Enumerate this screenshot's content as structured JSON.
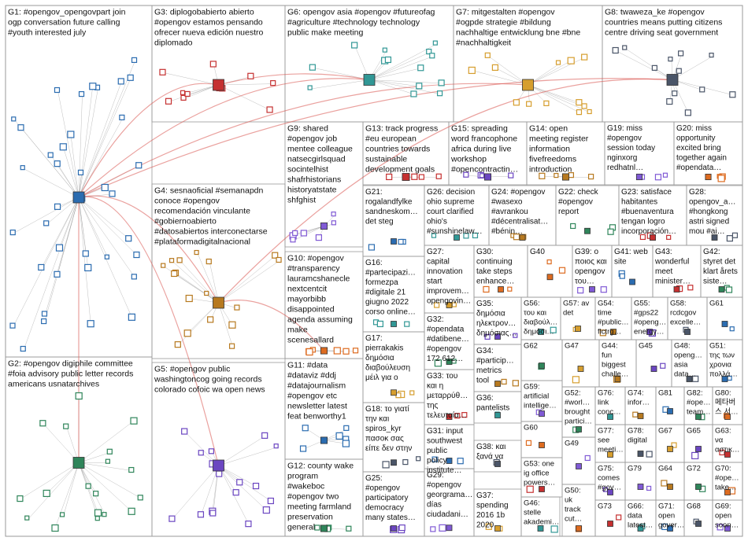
{
  "groups": [
    {
      "id": "G1",
      "lines": [
        "G1: #opengov_opengovpart join",
        "ogp conversation future calling",
        "#youth interested july"
      ]
    },
    {
      "id": "G2",
      "lines": [
        "G2: #opengov digiphile committee",
        "#foia advisory public letter records",
        "americans usnatarchives"
      ]
    },
    {
      "id": "G3",
      "lines": [
        "G3: diplogobabierto abierto",
        "#opengov estamos pensando",
        "ofrecer nueva edición nuestro",
        "diplomado"
      ]
    },
    {
      "id": "G4",
      "lines": [
        "G4: sesnaoficial #semanapdn",
        "conoce #opengov",
        "recomendación vinculante",
        "#gobiernoabierto",
        "#datosabiertos interconectarse",
        "#plataformadigitalnacional"
      ]
    },
    {
      "id": "G5",
      "lines": [
        "G5: #opengov public",
        "washingtoncog going records",
        "colorado cofoic wa open news"
      ]
    },
    {
      "id": "G6",
      "lines": [
        "G6: opengov asia #opengov #futureofag",
        "#agriculture #technology technology",
        "public make meeting"
      ]
    },
    {
      "id": "G7",
      "lines": [
        "G7: mitgestalten #opengov",
        "#ogpde strategie #bildung",
        "nachhaltige entwicklung bne #bne",
        "#nachhaltigkeit"
      ]
    },
    {
      "id": "G8",
      "lines": [
        "G8: twaweza_ke #opengov",
        "countries means putting citizens",
        "centre driving seat government"
      ]
    },
    {
      "id": "G9",
      "lines": [
        "G9: shared",
        "#opengov job",
        "mentee colleague",
        "natsecgirlsquad",
        "socintelhist",
        "shafrhistorians",
        "historyatstate",
        "shfghist"
      ]
    },
    {
      "id": "G10",
      "lines": [
        "G10: #opengov",
        "#transparency",
        "lauramcshanecle",
        "nextcentcit",
        "mayorbibb",
        "disappointed",
        "agenda assuming",
        "make",
        "scenesallard"
      ]
    },
    {
      "id": "G11",
      "lines": [
        "G11: #data",
        "#dataviz #ddj",
        "#datajournalism",
        "#opengov etc",
        "newsletter latest",
        "feat benworthy1"
      ]
    },
    {
      "id": "G12",
      "lines": [
        "G12: county wake",
        "program",
        "#wakeboc",
        "#opengov two",
        "meeting farmland",
        "preservation",
        "general"
      ]
    },
    {
      "id": "G13",
      "lines": [
        "G13: track progress",
        "#eu european",
        "countries towards",
        "sustainable",
        "development goals"
      ]
    },
    {
      "id": "G14",
      "lines": [
        "G14: open",
        "meeting register",
        "information",
        "fivefreedoms",
        "introduction"
      ]
    },
    {
      "id": "G15",
      "lines": [
        "G15: spreading",
        "word francophone",
        "africa during live",
        "workshop",
        "#opencontractin…"
      ]
    },
    {
      "id": "G16",
      "lines": [
        "G16:",
        "#partecipazi…",
        "formezpa",
        "#digitale 21",
        "giugno 2022",
        "corso online…"
      ]
    },
    {
      "id": "G17",
      "lines": [
        "G17:",
        "pierrakakis",
        "δημόσια",
        "διαβούλευση",
        "μέιλ για ο"
      ]
    },
    {
      "id": "G18",
      "lines": [
        "G18: το γιατί",
        "την και",
        "spiros_kyr",
        "πασοκ σας",
        "είπε δεν στην"
      ]
    },
    {
      "id": "G19",
      "lines": [
        "G19: miss",
        "#opengov",
        "session today",
        "nginxorg",
        "redhatnl…"
      ]
    },
    {
      "id": "G20",
      "lines": [
        "G20: miss",
        "opportunity",
        "excited bring",
        "together again",
        "#opendata…"
      ]
    },
    {
      "id": "G21",
      "lines": [
        "G21:",
        "rogalandfylke",
        "sandneskom…",
        "det steg"
      ]
    },
    {
      "id": "G22",
      "lines": [
        "G22: check",
        "#opengov",
        "report"
      ]
    },
    {
      "id": "G23",
      "lines": [
        "G23: satisface",
        "habitantes",
        "#buenaventura",
        "tengan logro",
        "incorporación…"
      ]
    },
    {
      "id": "G24",
      "lines": [
        "G24: #opengov",
        "#wasexo",
        "#avrankou",
        "#décentralisat…",
        "#bénin…"
      ]
    },
    {
      "id": "G25",
      "lines": [
        "G25:",
        "#opengov",
        "participatory",
        "democracy",
        "many states…"
      ]
    },
    {
      "id": "G26",
      "lines": [
        "G26: decision",
        "ohio supreme",
        "court clarified",
        "ohio's",
        "#sunshinelaw…"
      ]
    },
    {
      "id": "G27",
      "lines": [
        "G27:",
        "capital",
        "innovation",
        "start",
        "improvem…",
        "opengovin…"
      ]
    },
    {
      "id": "G28",
      "lines": [
        "G28:",
        "opengov_a…",
        "#hongkong",
        "astri signed",
        "mou #ai…"
      ]
    },
    {
      "id": "G29",
      "lines": [
        "G29:",
        "#opengov",
        "georgrama…",
        "días",
        "ciudadani…"
      ]
    },
    {
      "id": "G30",
      "lines": [
        "G30:",
        "continuing",
        "take steps",
        "enhance…"
      ]
    },
    {
      "id": "G31",
      "lines": [
        "G31: input",
        "southwest",
        "public",
        "policy",
        "institute…"
      ]
    },
    {
      "id": "G32",
      "lines": [
        "G32:",
        "#opendata",
        "#datibene…",
        "#opengov",
        "172 612…"
      ]
    },
    {
      "id": "G33",
      "lines": [
        "G33: του",
        "και η",
        "μεταρρύθ…",
        "της",
        "τελευταία…"
      ]
    },
    {
      "id": "G34",
      "lines": [
        "G34:",
        "#particip…",
        "metrics",
        "tool"
      ]
    },
    {
      "id": "G35",
      "lines": [
        "G35:",
        "δημόσια",
        "ηλεκτρον…",
        "δημόσιας…"
      ]
    },
    {
      "id": "G36",
      "lines": [
        "G36:",
        "pantelists"
      ]
    },
    {
      "id": "G37",
      "lines": [
        "G37:",
        "spending",
        "2016 1b",
        "2020"
      ]
    },
    {
      "id": "G38",
      "lines": [
        "G38: και",
        "ξανά να"
      ]
    },
    {
      "id": "G39",
      "lines": [
        "G39: ο",
        "ποιος και",
        "opengov",
        "του…"
      ]
    },
    {
      "id": "G40",
      "lines": [
        "G40"
      ]
    },
    {
      "id": "G41",
      "lines": [
        "G41: web",
        "site"
      ]
    },
    {
      "id": "G42",
      "lines": [
        "G42:",
        "styret det",
        "klart årets",
        "siste…"
      ]
    },
    {
      "id": "G43",
      "lines": [
        "G43:",
        "wonderful",
        "meet",
        "minister…"
      ]
    },
    {
      "id": "G44",
      "lines": [
        "G44:",
        "fun",
        "biggest",
        "challe…"
      ]
    },
    {
      "id": "G45",
      "lines": [
        "G45"
      ]
    },
    {
      "id": "G46",
      "lines": [
        "G46:",
        "stelle",
        "akademi…"
      ]
    },
    {
      "id": "G47",
      "lines": [
        "G47"
      ]
    },
    {
      "id": "G48",
      "lines": [
        "G48:",
        "openg…",
        "asia",
        "data…"
      ]
    },
    {
      "id": "G49",
      "lines": [
        "G49"
      ]
    },
    {
      "id": "G50",
      "lines": [
        "G50:",
        "uk",
        "track",
        "cut…"
      ]
    },
    {
      "id": "G51",
      "lines": [
        "G51:",
        "της των",
        "χρονια",
        "πολλά…"
      ]
    },
    {
      "id": "G52",
      "lines": [
        "G52:",
        "#worl…",
        "brought",
        "partici…"
      ]
    },
    {
      "id": "G53",
      "lines": [
        "G53: one",
        "ig office",
        "powers…"
      ]
    },
    {
      "id": "G54",
      "lines": [
        "G54:",
        "time",
        "#public…",
        "flctrg…"
      ]
    },
    {
      "id": "G55",
      "lines": [
        "G55:",
        "#gps22",
        "#openg…",
        "energy…"
      ]
    },
    {
      "id": "G56",
      "lines": [
        "G56:",
        "του και",
        "διαβούλ…",
        "δημόσι…"
      ]
    },
    {
      "id": "G57",
      "lines": [
        "G57: av",
        "det"
      ]
    },
    {
      "id": "G58",
      "lines": [
        "G58:",
        "rcdcgov",
        "excelle…"
      ]
    },
    {
      "id": "G59",
      "lines": [
        "G59:",
        "artificial",
        "intellige…"
      ]
    },
    {
      "id": "G60",
      "lines": [
        "G60"
      ]
    },
    {
      "id": "G61",
      "lines": [
        "G61"
      ]
    },
    {
      "id": "G62",
      "lines": [
        "G62"
      ]
    },
    {
      "id": "G63",
      "lines": [
        "G63:",
        "να",
        "αστικ…"
      ]
    },
    {
      "id": "G64",
      "lines": [
        "G64"
      ]
    },
    {
      "id": "G65",
      "lines": [
        "G65"
      ]
    },
    {
      "id": "G66",
      "lines": [
        "G66:",
        "data",
        "latest…"
      ]
    },
    {
      "id": "G67",
      "lines": [
        "G67"
      ]
    },
    {
      "id": "G68",
      "lines": [
        "G68"
      ]
    },
    {
      "id": "G69",
      "lines": [
        "G69:",
        "open",
        "soon…"
      ]
    },
    {
      "id": "G70",
      "lines": [
        "G70:",
        "#ope…",
        "take…"
      ]
    },
    {
      "id": "G71",
      "lines": [
        "G71:",
        "open",
        "gover…"
      ]
    },
    {
      "id": "G72",
      "lines": [
        "G72"
      ]
    },
    {
      "id": "G73",
      "lines": [
        "G73"
      ]
    },
    {
      "id": "G74",
      "lines": [
        "G74:",
        "infor…"
      ]
    },
    {
      "id": "G75",
      "lines": [
        "G75:",
        "comes",
        "#gov…"
      ]
    },
    {
      "id": "G76",
      "lines": [
        "G76:",
        "link",
        "conc…"
      ]
    },
    {
      "id": "G77",
      "lines": [
        "G77:",
        "see",
        "meeti…"
      ]
    },
    {
      "id": "G78",
      "lines": [
        "G78:",
        "digital"
      ]
    },
    {
      "id": "G79",
      "lines": [
        "G79"
      ]
    },
    {
      "id": "G80",
      "lines": [
        "G80:",
        "메타버",
        "스 서…"
      ]
    },
    {
      "id": "G81",
      "lines": [
        "G81"
      ]
    },
    {
      "id": "G82",
      "lines": [
        "G82:",
        "#ope…",
        "team…"
      ]
    }
  ],
  "colors": {
    "cell_border": "#9a9a9a",
    "edge": "#8a8a8a",
    "edge_strong": "#d9534f",
    "node_palette": [
      "#2b6cb0",
      "#2f855a",
      "#c53030",
      "#b7791f",
      "#6b46c1",
      "#319795",
      "#d69e2e",
      "#4a5568",
      "#805ad5",
      "#dd6b20"
    ]
  }
}
